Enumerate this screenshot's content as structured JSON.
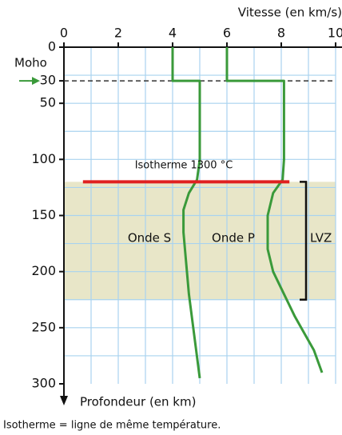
{
  "chart_data": {
    "type": "line",
    "x_label": "Vitesse (en km/s)",
    "y_label": "Profondeur (en km)",
    "xlim": [
      0,
      10
    ],
    "xticks": [
      0,
      2,
      4,
      6,
      8,
      10
    ],
    "ylim": [
      0,
      300
    ],
    "yticks": [
      0,
      30,
      50,
      100,
      150,
      200,
      250,
      300
    ],
    "xgrid": [
      1,
      2,
      3,
      4,
      5,
      6,
      7,
      8,
      9,
      10
    ],
    "ygrid": [
      25,
      50,
      75,
      100,
      125,
      150,
      175,
      200,
      225,
      250,
      275
    ],
    "grid": true,
    "grid_color": "#a9d3ef",
    "series": [
      {
        "name": "Onde S",
        "color": "#3a9a3a",
        "x": [
          4,
          4,
          5,
          5,
          4.9,
          4.6,
          4.4,
          4.4,
          4.6,
          5
        ],
        "values": [
          0,
          30,
          30,
          100,
          118,
          130,
          145,
          165,
          220,
          295
        ]
      },
      {
        "name": "Onde P",
        "color": "#3a9a3a",
        "x": [
          6,
          6,
          8.1,
          8.1,
          8.05,
          7.7,
          7.5,
          7.5,
          7.7,
          8.5,
          9.2,
          9.5
        ],
        "values": [
          0,
          30,
          30,
          100,
          118,
          130,
          150,
          180,
          200,
          240,
          270,
          290
        ]
      }
    ],
    "moho": {
      "label": "Moho",
      "depth": 30,
      "color": "#3a9a3a"
    },
    "isotherm": {
      "label": "Isotherme 1300 °C",
      "depth": 120,
      "x": [
        0.7,
        8.3
      ],
      "color": "#e02020"
    },
    "zone": {
      "label": "LVZ",
      "from": 120,
      "to": 225,
      "color": "#e8e6c8"
    },
    "note": "Isotherme = ligne de même température."
  }
}
